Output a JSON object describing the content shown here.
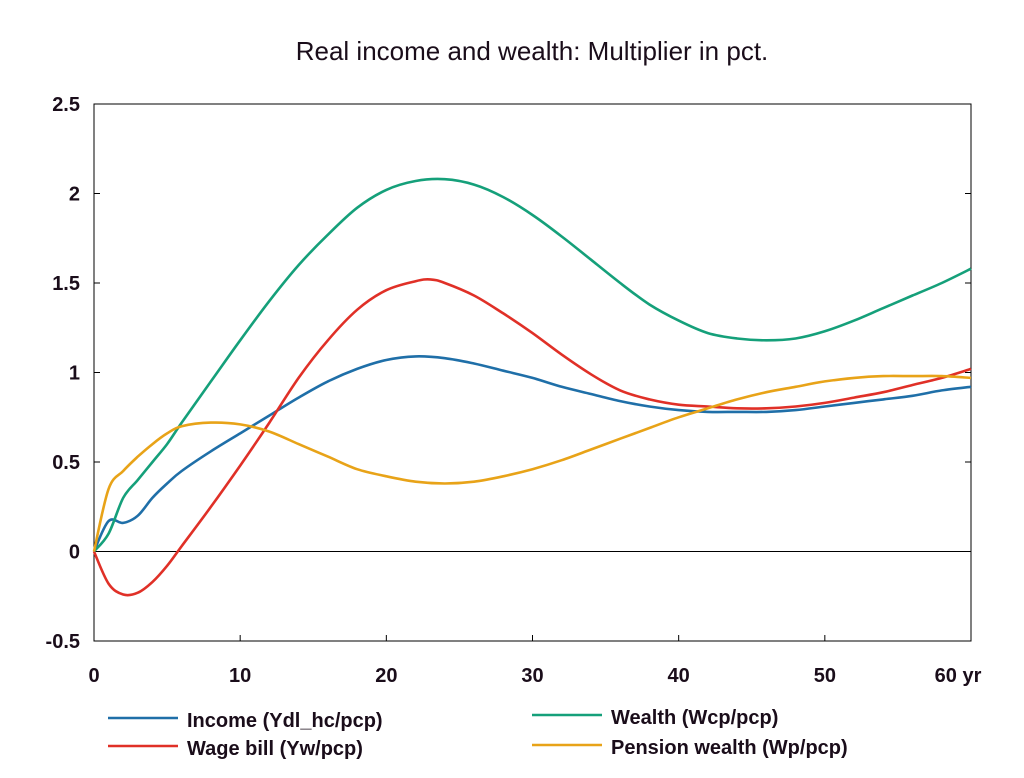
{
  "chart_data": {
    "type": "line",
    "title": "Real income and wealth: Multiplier in pct.",
    "xlabel": "",
    "ylabel": "",
    "x_unit": "yr",
    "xlim": [
      0,
      60
    ],
    "ylim": [
      -0.5,
      2.5
    ],
    "x_ticks": [
      0,
      10,
      20,
      30,
      40,
      50,
      60
    ],
    "x_tick_labels": [
      "0",
      "10",
      "20",
      "30",
      "40",
      "50",
      "60 yr"
    ],
    "y_ticks": [
      -0.5,
      0,
      0.5,
      1,
      1.5,
      2,
      2.5
    ],
    "y_tick_labels": [
      "-0.5",
      "0",
      "0.5",
      "1",
      "1.5",
      "2",
      "2.5"
    ],
    "grid": false,
    "legend_position": "bottom",
    "series": [
      {
        "name": "Income (Ydl_hc/pcp)",
        "color": "#1f6fa8",
        "x": [
          0,
          1,
          2,
          3,
          4,
          5,
          6,
          8,
          10,
          12,
          14,
          16,
          18,
          20,
          22,
          24,
          26,
          28,
          30,
          32,
          34,
          36,
          38,
          40,
          42,
          44,
          46,
          48,
          50,
          52,
          54,
          56,
          58,
          60
        ],
        "y": [
          0,
          0.17,
          0.16,
          0.2,
          0.3,
          0.38,
          0.45,
          0.56,
          0.66,
          0.76,
          0.86,
          0.95,
          1.02,
          1.07,
          1.09,
          1.08,
          1.05,
          1.01,
          0.97,
          0.92,
          0.88,
          0.84,
          0.81,
          0.79,
          0.78,
          0.78,
          0.78,
          0.79,
          0.81,
          0.83,
          0.85,
          0.87,
          0.9,
          0.92
        ]
      },
      {
        "name": "Wage bill (Yw/pcp)",
        "color": "#e03027",
        "x": [
          0,
          1,
          2,
          3,
          4,
          5,
          6,
          8,
          10,
          12,
          14,
          16,
          18,
          20,
          22,
          23,
          24,
          26,
          28,
          30,
          32,
          34,
          36,
          38,
          40,
          42,
          44,
          46,
          48,
          50,
          52,
          54,
          56,
          58,
          60
        ],
        "y": [
          0,
          -0.18,
          -0.24,
          -0.23,
          -0.17,
          -0.08,
          0.03,
          0.25,
          0.48,
          0.72,
          0.97,
          1.18,
          1.35,
          1.46,
          1.51,
          1.52,
          1.5,
          1.43,
          1.33,
          1.22,
          1.1,
          0.99,
          0.9,
          0.85,
          0.82,
          0.81,
          0.8,
          0.8,
          0.81,
          0.83,
          0.86,
          0.89,
          0.93,
          0.97,
          1.02
        ]
      },
      {
        "name": "Wealth (Wcp/pcp)",
        "color": "#15a07a",
        "x": [
          0,
          1,
          2,
          3,
          4,
          5,
          6,
          8,
          10,
          12,
          14,
          16,
          18,
          20,
          22,
          24,
          26,
          28,
          30,
          32,
          34,
          36,
          38,
          40,
          42,
          44,
          46,
          48,
          50,
          52,
          54,
          56,
          58,
          60
        ],
        "y": [
          0,
          0.1,
          0.3,
          0.4,
          0.5,
          0.6,
          0.72,
          0.95,
          1.18,
          1.4,
          1.6,
          1.77,
          1.92,
          2.02,
          2.07,
          2.08,
          2.05,
          1.98,
          1.88,
          1.76,
          1.63,
          1.5,
          1.38,
          1.29,
          1.22,
          1.19,
          1.18,
          1.19,
          1.23,
          1.29,
          1.36,
          1.43,
          1.5,
          1.58
        ]
      },
      {
        "name": "Pension wealth (Wp/pcp)",
        "color": "#e8a318",
        "x": [
          0,
          1,
          2,
          3,
          4,
          5,
          6,
          8,
          10,
          12,
          14,
          16,
          18,
          20,
          22,
          24,
          26,
          28,
          30,
          32,
          34,
          36,
          38,
          40,
          42,
          44,
          46,
          48,
          50,
          52,
          54,
          56,
          58,
          60
        ],
        "y": [
          0,
          0.35,
          0.45,
          0.53,
          0.6,
          0.66,
          0.7,
          0.72,
          0.71,
          0.67,
          0.6,
          0.53,
          0.46,
          0.42,
          0.39,
          0.38,
          0.39,
          0.42,
          0.46,
          0.51,
          0.57,
          0.63,
          0.69,
          0.75,
          0.8,
          0.85,
          0.89,
          0.92,
          0.95,
          0.97,
          0.98,
          0.98,
          0.98,
          0.97
        ]
      }
    ]
  }
}
